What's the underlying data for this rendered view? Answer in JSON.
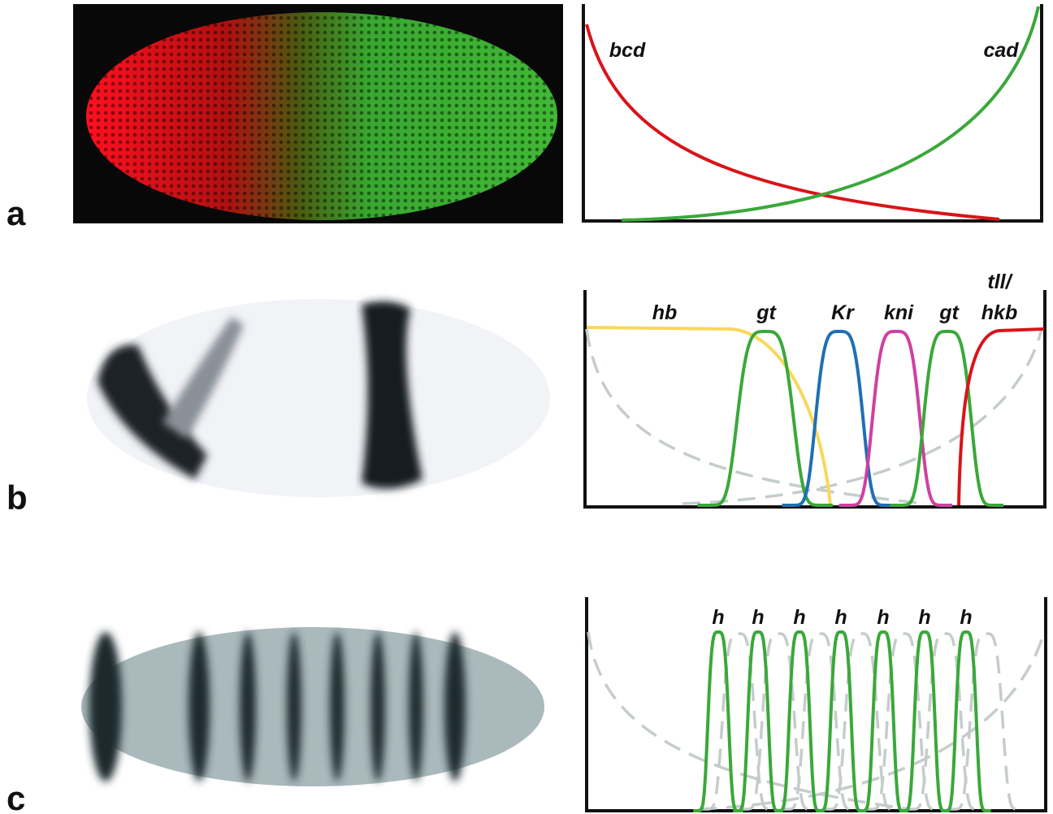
{
  "panels": [
    {
      "label": "a",
      "genes": [
        "bcd",
        "cad"
      ]
    },
    {
      "label": "b",
      "genes": [
        "hb",
        "gt",
        "Kr",
        "kni",
        "gt",
        "tll/",
        "hkb"
      ]
    },
    {
      "label": "c",
      "genes": [
        "h",
        "h",
        "h",
        "h",
        "h",
        "h",
        "h"
      ]
    }
  ]
}
